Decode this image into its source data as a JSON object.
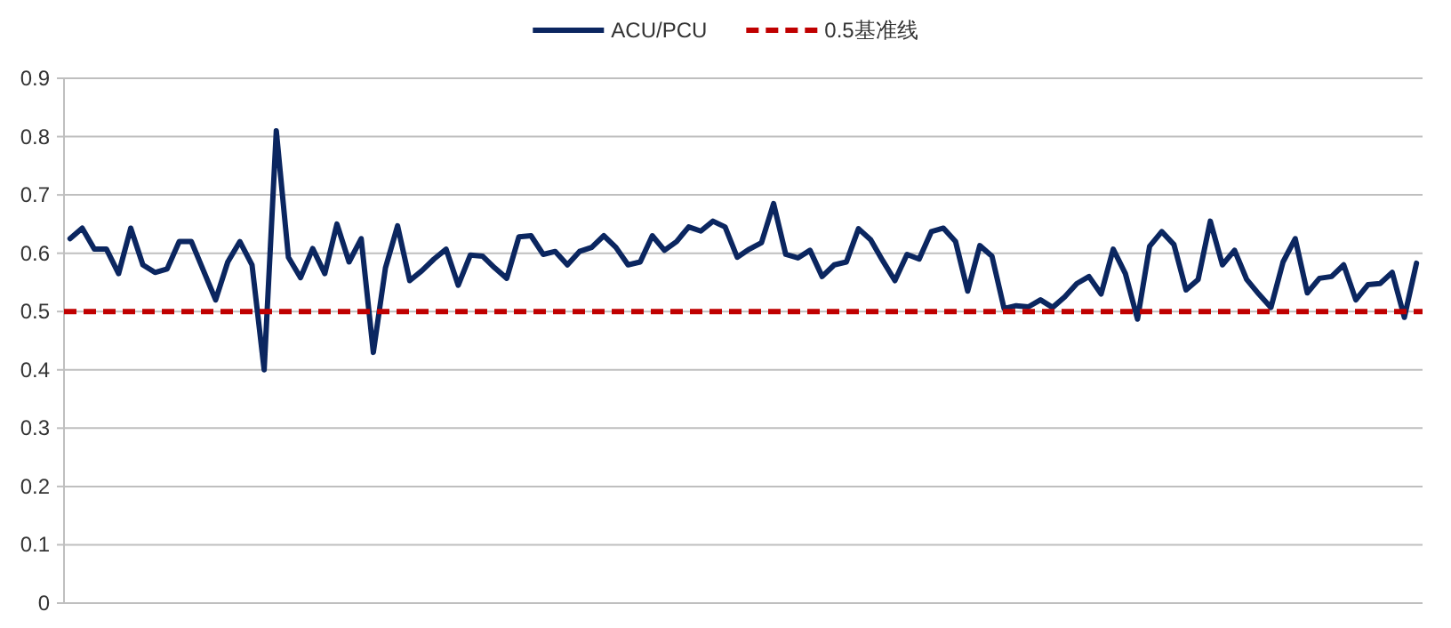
{
  "chart_data": {
    "type": "line",
    "categories": [
      null,
      null,
      null,
      null,
      null,
      null,
      null,
      null,
      null,
      null,
      null,
      null,
      null,
      null,
      null,
      null,
      null,
      null,
      null,
      null,
      null,
      null,
      null,
      null,
      null,
      null,
      null,
      null,
      null,
      null,
      null,
      null,
      null,
      null,
      null,
      null,
      null,
      null,
      null,
      null,
      null,
      null,
      null,
      null,
      null,
      null,
      null,
      null,
      null,
      null,
      null,
      null,
      null,
      null,
      null,
      null,
      null,
      null,
      null,
      null,
      null,
      null,
      null,
      null,
      null,
      null,
      null,
      null,
      null,
      null,
      null,
      null,
      null,
      null,
      null,
      null,
      null,
      null,
      null,
      null,
      null,
      null,
      null,
      null,
      null,
      null,
      null,
      null,
      null,
      null,
      null,
      null,
      null,
      null,
      null,
      null,
      null,
      null,
      null,
      null,
      null,
      null,
      null,
      null,
      null,
      null,
      null,
      null,
      null,
      null,
      null,
      null
    ],
    "series": [
      {
        "name": "ACU/PCU",
        "color": "#0b2660",
        "values": [
          0.625,
          0.643,
          0.607,
          0.607,
          0.565,
          0.643,
          0.58,
          0.567,
          0.573,
          0.62,
          0.62,
          0.57,
          0.52,
          0.585,
          0.62,
          0.58,
          0.4,
          0.81,
          0.593,
          0.558,
          0.608,
          0.565,
          0.65,
          0.585,
          0.625,
          0.43,
          0.575,
          0.647,
          0.553,
          0.57,
          0.59,
          0.607,
          0.545,
          0.597,
          0.595,
          0.575,
          0.557,
          0.628,
          0.63,
          0.598,
          0.603,
          0.58,
          0.603,
          0.61,
          0.63,
          0.61,
          0.58,
          0.585,
          0.63,
          0.605,
          0.62,
          0.645,
          0.638,
          0.655,
          0.645,
          0.593,
          0.607,
          0.618,
          0.685,
          0.598,
          0.592,
          0.605,
          0.56,
          0.58,
          0.585,
          0.642,
          0.623,
          0.587,
          0.553,
          0.598,
          0.59,
          0.637,
          0.643,
          0.62,
          0.535,
          0.613,
          0.595,
          0.505,
          0.51,
          0.508,
          0.52,
          0.507,
          0.525,
          0.548,
          0.56,
          0.53,
          0.607,
          0.565,
          0.487,
          0.612,
          0.637,
          0.615,
          0.537,
          0.555,
          0.655,
          0.58,
          0.605,
          0.555,
          0.53,
          0.507,
          0.585,
          0.625,
          0.532,
          0.557,
          0.56,
          0.58,
          0.52,
          0.546,
          0.548,
          0.567,
          0.49,
          0.583
        ]
      }
    ],
    "ref_lines": [
      {
        "axis": "y",
        "value": 0.5,
        "label": "0.5基准线",
        "color": "#c00000",
        "line_style": "dashed"
      }
    ],
    "ylim": [
      0,
      0.9
    ],
    "yticks": [
      0,
      0.1,
      0.2,
      0.3,
      0.4,
      0.5,
      0.6,
      0.7,
      0.8,
      0.9
    ],
    "grid": "y",
    "legend": "top"
  }
}
